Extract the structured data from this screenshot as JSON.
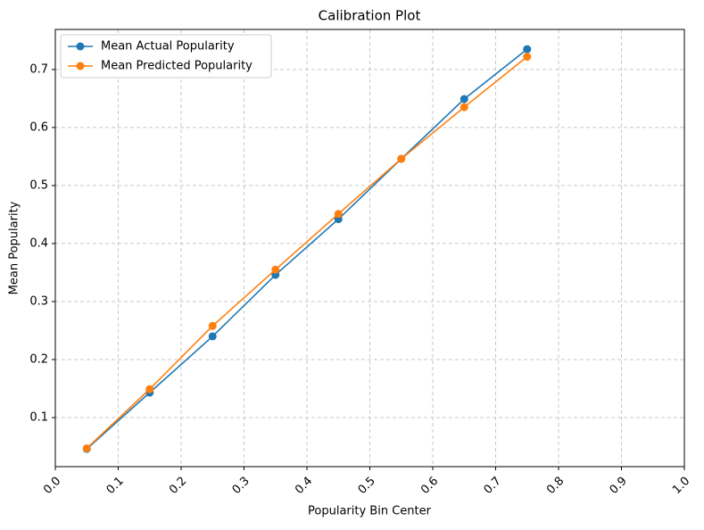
{
  "chart_data": {
    "type": "line",
    "title": "Calibration Plot",
    "xlabel": "Popularity Bin Center",
    "ylabel": "Mean Popularity",
    "x": [
      0.05,
      0.15,
      0.25,
      0.35,
      0.45,
      0.55,
      0.65,
      0.75
    ],
    "series": [
      {
        "name": "Mean Actual Popularity",
        "color": "#1f77b4",
        "values": [
          0.046,
          0.143,
          0.24,
          0.346,
          0.442,
          0.546,
          0.649,
          0.735
        ]
      },
      {
        "name": "Mean Predicted Popularity",
        "color": "#ff7f0e",
        "values": [
          0.047,
          0.149,
          0.258,
          0.355,
          0.451,
          0.546,
          0.635,
          0.722
        ]
      }
    ],
    "xlim": [
      0,
      1
    ],
    "xticks": [
      {
        "value": 0,
        "label": "0.0"
      },
      0.1,
      0.2,
      0.3,
      0.4,
      0.5,
      0.6,
      0.7,
      0.8,
      0.9,
      {
        "value": 1,
        "label": "1.0"
      }
    ],
    "ylim": [
      0.0154,
      0.769
    ],
    "yticks": [
      0.1,
      0.2,
      0.3,
      0.4,
      0.5,
      0.6,
      0.7
    ],
    "grid": true,
    "legend": "upper-left"
  }
}
